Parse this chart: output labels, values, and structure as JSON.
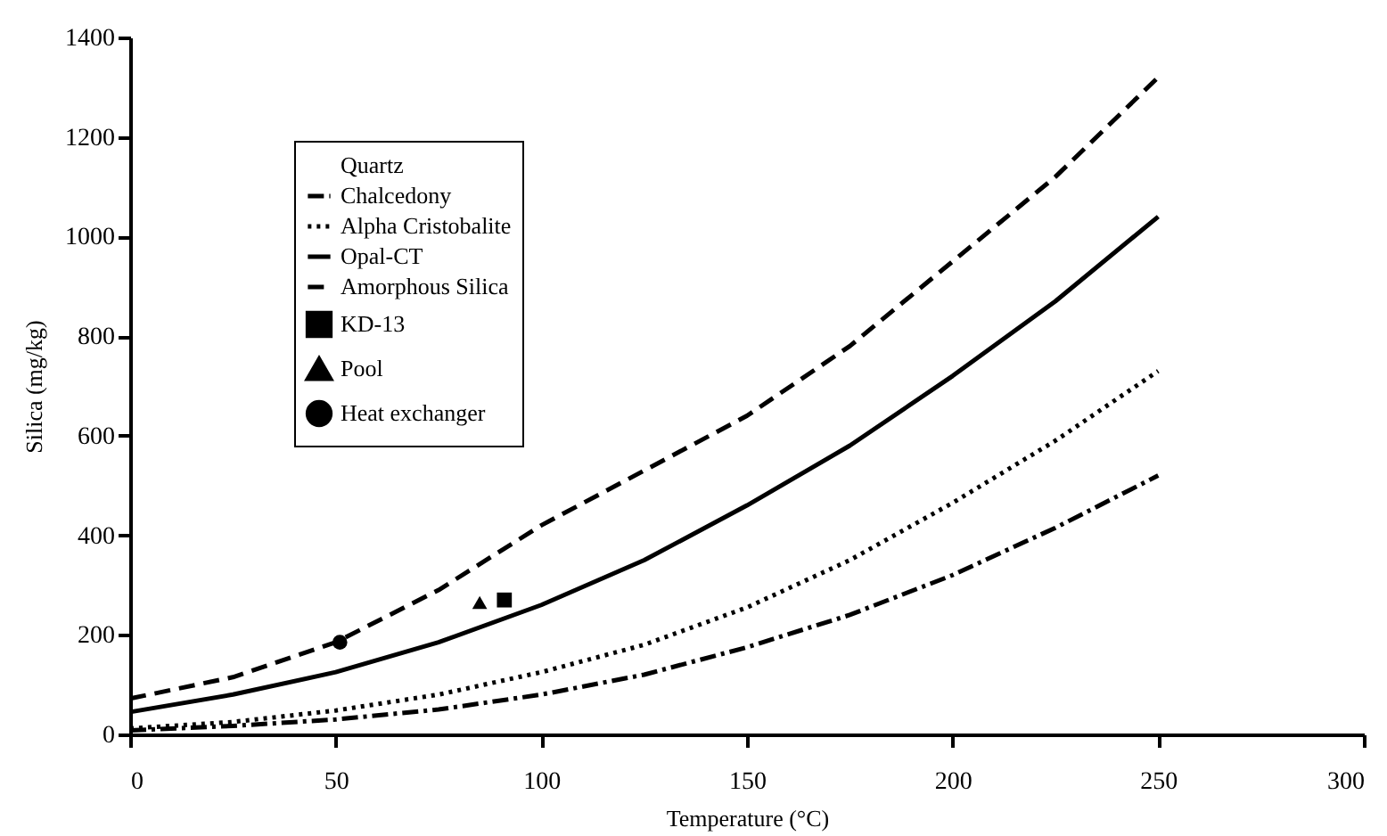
{
  "chart_data": {
    "type": "line",
    "xlabel": "Temperature (°C)",
    "ylabel": "Silica (mg/kg)",
    "x": [
      0,
      25,
      50,
      75,
      100,
      125,
      150,
      175,
      200,
      225,
      250
    ],
    "xlim": [
      0,
      300
    ],
    "xticks": [
      0,
      50,
      100,
      150,
      200,
      250,
      300
    ],
    "ylim": [
      0,
      1400
    ],
    "yticks": [
      0,
      200,
      400,
      600,
      800,
      {
        "value": 1000,
        "label": "1000"
      },
      {
        "value": 1200,
        "label": "1200"
      },
      {
        "value": 1400,
        "label": "1400"
      }
    ],
    "grid": false,
    "legend": "top left",
    "series": [
      {
        "name": "Quartz",
        "values": [
          null,
          null,
          null,
          null,
          null,
          null,
          null,
          null,
          null,
          null,
          null
        ]
      },
      {
        "name": "Chalcedony",
        "color": "#000000",
        "line_style": "dashdot",
        "values": [
          8,
          17,
          30,
          50,
          80,
          120,
          175,
          240,
          320,
          415,
          520
        ]
      },
      {
        "name": "Alpha Cristobalite",
        "color": "#000000",
        "line_style": "dotted",
        "values": [
          12,
          25,
          48,
          80,
          125,
          180,
          255,
          350,
          465,
          590,
          730
        ]
      },
      {
        "name": "Opal-CT",
        "color": "#000000",
        "line_style": "solid",
        "values": [
          45,
          80,
          125,
          185,
          260,
          350,
          460,
          580,
          720,
          870,
          1040
        ]
      },
      {
        "name": "Amorphous Silica",
        "color": "#000000",
        "line_style": "dashed",
        "values": [
          72,
          115,
          185,
          290,
          420,
          530,
          640,
          780,
          950,
          1120,
          1320
        ]
      },
      {
        "name": "KD-13",
        "type": "scatter",
        "marker": "square",
        "color": "#000000",
        "x": [
          91
        ],
        "values": [
          270
        ]
      },
      {
        "name": "Pool",
        "type": "scatter",
        "marker": "triangle",
        "color": "#000000",
        "x": [
          85
        ],
        "values": [
          265
        ]
      },
      {
        "name": "Heat exchanger",
        "type": "scatter",
        "marker": "circle",
        "color": "#000000",
        "x": [
          51
        ],
        "values": [
          185
        ]
      }
    ]
  }
}
